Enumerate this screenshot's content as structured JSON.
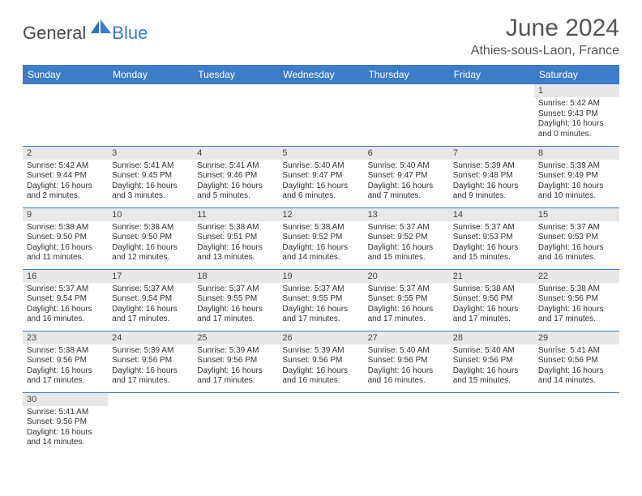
{
  "brand": {
    "main": "General",
    "sub": "Blue"
  },
  "title": "June 2024",
  "location": "Athies-sous-Laon, France",
  "colors": {
    "header_bg": "#3d7cc9",
    "header_text": "#ffffff",
    "daynum_bg": "#e8e8e8",
    "row_divider": "#3d7cc9",
    "body_text": "#333333",
    "title_text": "#555555"
  },
  "typography": {
    "title_fontsize": 30,
    "location_fontsize": 16,
    "header_fontsize": 12,
    "daynum_fontsize": 11,
    "info_fontsize": 10
  },
  "weekdays": [
    "Sunday",
    "Monday",
    "Tuesday",
    "Wednesday",
    "Thursday",
    "Friday",
    "Saturday"
  ],
  "days": {
    "1": {
      "sunrise": "Sunrise: 5:42 AM",
      "sunset": "Sunset: 9:43 PM",
      "daylight1": "Daylight: 16 hours",
      "daylight2": "and 0 minutes."
    },
    "2": {
      "sunrise": "Sunrise: 5:42 AM",
      "sunset": "Sunset: 9:44 PM",
      "daylight1": "Daylight: 16 hours",
      "daylight2": "and 2 minutes."
    },
    "3": {
      "sunrise": "Sunrise: 5:41 AM",
      "sunset": "Sunset: 9:45 PM",
      "daylight1": "Daylight: 16 hours",
      "daylight2": "and 3 minutes."
    },
    "4": {
      "sunrise": "Sunrise: 5:41 AM",
      "sunset": "Sunset: 9:46 PM",
      "daylight1": "Daylight: 16 hours",
      "daylight2": "and 5 minutes."
    },
    "5": {
      "sunrise": "Sunrise: 5:40 AM",
      "sunset": "Sunset: 9:47 PM",
      "daylight1": "Daylight: 16 hours",
      "daylight2": "and 6 minutes."
    },
    "6": {
      "sunrise": "Sunrise: 5:40 AM",
      "sunset": "Sunset: 9:47 PM",
      "daylight1": "Daylight: 16 hours",
      "daylight2": "and 7 minutes."
    },
    "7": {
      "sunrise": "Sunrise: 5:39 AM",
      "sunset": "Sunset: 9:48 PM",
      "daylight1": "Daylight: 16 hours",
      "daylight2": "and 9 minutes."
    },
    "8": {
      "sunrise": "Sunrise: 5:39 AM",
      "sunset": "Sunset: 9:49 PM",
      "daylight1": "Daylight: 16 hours",
      "daylight2": "and 10 minutes."
    },
    "9": {
      "sunrise": "Sunrise: 5:38 AM",
      "sunset": "Sunset: 9:50 PM",
      "daylight1": "Daylight: 16 hours",
      "daylight2": "and 11 minutes."
    },
    "10": {
      "sunrise": "Sunrise: 5:38 AM",
      "sunset": "Sunset: 9:50 PM",
      "daylight1": "Daylight: 16 hours",
      "daylight2": "and 12 minutes."
    },
    "11": {
      "sunrise": "Sunrise: 5:38 AM",
      "sunset": "Sunset: 9:51 PM",
      "daylight1": "Daylight: 16 hours",
      "daylight2": "and 13 minutes."
    },
    "12": {
      "sunrise": "Sunrise: 5:38 AM",
      "sunset": "Sunset: 9:52 PM",
      "daylight1": "Daylight: 16 hours",
      "daylight2": "and 14 minutes."
    },
    "13": {
      "sunrise": "Sunrise: 5:37 AM",
      "sunset": "Sunset: 9:52 PM",
      "daylight1": "Daylight: 16 hours",
      "daylight2": "and 15 minutes."
    },
    "14": {
      "sunrise": "Sunrise: 5:37 AM",
      "sunset": "Sunset: 9:53 PM",
      "daylight1": "Daylight: 16 hours",
      "daylight2": "and 15 minutes."
    },
    "15": {
      "sunrise": "Sunrise: 5:37 AM",
      "sunset": "Sunset: 9:53 PM",
      "daylight1": "Daylight: 16 hours",
      "daylight2": "and 16 minutes."
    },
    "16": {
      "sunrise": "Sunrise: 5:37 AM",
      "sunset": "Sunset: 9:54 PM",
      "daylight1": "Daylight: 16 hours",
      "daylight2": "and 16 minutes."
    },
    "17": {
      "sunrise": "Sunrise: 5:37 AM",
      "sunset": "Sunset: 9:54 PM",
      "daylight1": "Daylight: 16 hours",
      "daylight2": "and 17 minutes."
    },
    "18": {
      "sunrise": "Sunrise: 5:37 AM",
      "sunset": "Sunset: 9:55 PM",
      "daylight1": "Daylight: 16 hours",
      "daylight2": "and 17 minutes."
    },
    "19": {
      "sunrise": "Sunrise: 5:37 AM",
      "sunset": "Sunset: 9:55 PM",
      "daylight1": "Daylight: 16 hours",
      "daylight2": "and 17 minutes."
    },
    "20": {
      "sunrise": "Sunrise: 5:37 AM",
      "sunset": "Sunset: 9:55 PM",
      "daylight1": "Daylight: 16 hours",
      "daylight2": "and 17 minutes."
    },
    "21": {
      "sunrise": "Sunrise: 5:38 AM",
      "sunset": "Sunset: 9:56 PM",
      "daylight1": "Daylight: 16 hours",
      "daylight2": "and 17 minutes."
    },
    "22": {
      "sunrise": "Sunrise: 5:38 AM",
      "sunset": "Sunset: 9:56 PM",
      "daylight1": "Daylight: 16 hours",
      "daylight2": "and 17 minutes."
    },
    "23": {
      "sunrise": "Sunrise: 5:38 AM",
      "sunset": "Sunset: 9:56 PM",
      "daylight1": "Daylight: 16 hours",
      "daylight2": "and 17 minutes."
    },
    "24": {
      "sunrise": "Sunrise: 5:39 AM",
      "sunset": "Sunset: 9:56 PM",
      "daylight1": "Daylight: 16 hours",
      "daylight2": "and 17 minutes."
    },
    "25": {
      "sunrise": "Sunrise: 5:39 AM",
      "sunset": "Sunset: 9:56 PM",
      "daylight1": "Daylight: 16 hours",
      "daylight2": "and 17 minutes."
    },
    "26": {
      "sunrise": "Sunrise: 5:39 AM",
      "sunset": "Sunset: 9:56 PM",
      "daylight1": "Daylight: 16 hours",
      "daylight2": "and 16 minutes."
    },
    "27": {
      "sunrise": "Sunrise: 5:40 AM",
      "sunset": "Sunset: 9:56 PM",
      "daylight1": "Daylight: 16 hours",
      "daylight2": "and 16 minutes."
    },
    "28": {
      "sunrise": "Sunrise: 5:40 AM",
      "sunset": "Sunset: 9:56 PM",
      "daylight1": "Daylight: 16 hours",
      "daylight2": "and 15 minutes."
    },
    "29": {
      "sunrise": "Sunrise: 5:41 AM",
      "sunset": "Sunset: 9:56 PM",
      "daylight1": "Daylight: 16 hours",
      "daylight2": "and 14 minutes."
    },
    "30": {
      "sunrise": "Sunrise: 5:41 AM",
      "sunset": "Sunset: 9:56 PM",
      "daylight1": "Daylight: 16 hours",
      "daylight2": "and 14 minutes."
    }
  },
  "layout": {
    "first_weekday_index": 6,
    "num_days": 30,
    "columns": 7
  }
}
